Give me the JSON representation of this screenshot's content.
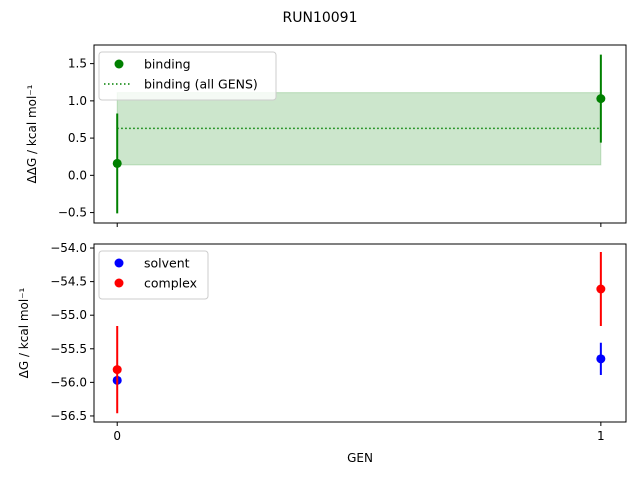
{
  "chart_data": {
    "title": "RUN10091",
    "xlabel": "GEN",
    "x_ticks": [
      "0",
      "1"
    ],
    "xlim": [
      -0.048,
      1.052
    ],
    "panels": [
      {
        "type": "scatter",
        "ylabel": "ΔΔG / kcal mol⁻¹",
        "ylim": [
          -0.64,
          1.75
        ],
        "y_ticks": [
          "−0.5",
          "0.0",
          "0.5",
          "1.0",
          "1.5"
        ],
        "y_tick_values": [
          -0.5,
          0.0,
          0.5,
          1.0,
          1.5
        ],
        "legend_position": "upper-left",
        "series": [
          {
            "name": "binding",
            "color": "#008000",
            "x": [
              0,
              1
            ],
            "y": [
              0.16,
              1.03
            ],
            "yerr": [
              0.67,
              0.59
            ]
          }
        ],
        "aggregate": {
          "name": "binding (all GENS)",
          "color": "#008000",
          "mean": 0.63,
          "band": [
            0.14,
            1.11
          ],
          "x_range": [
            0,
            1
          ]
        }
      },
      {
        "type": "scatter",
        "ylabel": "ΔG / kcal mol⁻¹",
        "ylim": [
          -56.59,
          -53.94
        ],
        "y_ticks": [
          "−54.0",
          "−54.5",
          "−55.0",
          "−55.5",
          "−56.0",
          "−56.5"
        ],
        "y_tick_values": [
          -54.0,
          -54.5,
          -55.0,
          -55.5,
          -56.0,
          -56.5
        ],
        "legend_position": "upper-left",
        "series": [
          {
            "name": "solvent",
            "color": "#0000ff",
            "x": [
              0,
              1
            ],
            "y": [
              -55.97,
              -55.65
            ],
            "yerr": [
              0.0,
              0.24
            ]
          },
          {
            "name": "complex",
            "color": "#ff0000",
            "x": [
              0,
              1
            ],
            "y": [
              -55.81,
              -54.61
            ],
            "yerr": [
              0.65,
              0.55
            ]
          }
        ]
      }
    ]
  }
}
